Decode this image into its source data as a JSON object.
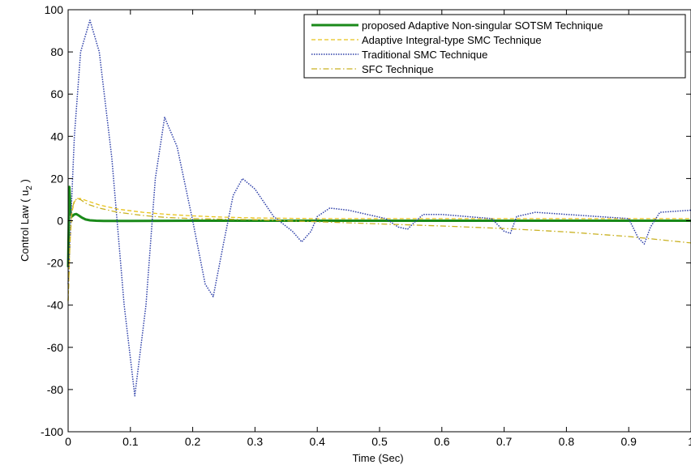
{
  "chart_data": {
    "type": "line",
    "xlabel": "Time (Sec)",
    "ylabel_main": "Control Law ( u",
    "ylabel_sub": "2",
    "ylabel_end": " )",
    "xlim": [
      0,
      1
    ],
    "ylim": [
      -100,
      100
    ],
    "xticks": [
      0,
      0.1,
      0.2,
      0.3,
      0.4,
      0.5,
      0.6,
      0.7,
      0.8,
      0.9,
      1
    ],
    "xtick_labels": [
      "0",
      "0.1",
      "0.2",
      "0.3",
      "0.4",
      "0.5",
      "0.6",
      "0.7",
      "0.8",
      "0.9",
      "1"
    ],
    "yticks": [
      -100,
      -80,
      -60,
      -40,
      -20,
      0,
      20,
      40,
      60,
      80,
      100
    ],
    "ytick_labels": [
      "-100",
      "-80",
      "-60",
      "-40",
      "-20",
      "0",
      "20",
      "40",
      "60",
      "80",
      "100"
    ],
    "grid": false,
    "legend_position": "top-right",
    "series": [
      {
        "name": "proposed Adaptive Non-singular SOTSM Technique",
        "color": "#1a8a1a",
        "style": "solid",
        "x": [
          0,
          0.002,
          0.004,
          0.006,
          0.008,
          0.01,
          0.013,
          0.017,
          0.022,
          0.028,
          0.035,
          0.045,
          0.06,
          0.1,
          0.2,
          0.4,
          0.6,
          0.8,
          1.0
        ],
        "y": [
          -22,
          16,
          4,
          2,
          2.5,
          3,
          3.2,
          2.5,
          1.5,
          0.6,
          0.2,
          0,
          -0.1,
          -0.1,
          0,
          0,
          0,
          0,
          0
        ]
      },
      {
        "name": "Adaptive Integral-type SMC Technique",
        "color": "#e8c21a",
        "style": "dashed",
        "x": [
          0,
          0.003,
          0.006,
          0.01,
          0.015,
          0.02,
          0.03,
          0.05,
          0.08,
          0.12,
          0.16,
          0.2,
          0.25,
          0.3,
          0.4,
          0.5,
          0.6,
          0.7,
          0.8,
          0.9,
          1.0
        ],
        "y": [
          -38,
          -10,
          4,
          9,
          10.5,
          10.5,
          9.5,
          7.5,
          5.5,
          4,
          3,
          2.3,
          1.7,
          1.3,
          1,
          1,
          1,
          1,
          1,
          1,
          1
        ]
      },
      {
        "name": "Traditional SMC Technique",
        "color": "#2d3fa8",
        "style": "dotted",
        "x": [
          0,
          0.01,
          0.02,
          0.035,
          0.05,
          0.07,
          0.09,
          0.107,
          0.125,
          0.14,
          0.155,
          0.175,
          0.2,
          0.22,
          0.233,
          0.25,
          0.265,
          0.28,
          0.3,
          0.33,
          0.36,
          0.375,
          0.39,
          0.4,
          0.42,
          0.45,
          0.48,
          0.51,
          0.53,
          0.545,
          0.555,
          0.57,
          0.6,
          0.64,
          0.68,
          0.7,
          0.71,
          0.72,
          0.75,
          0.8,
          0.85,
          0.9,
          0.915,
          0.925,
          0.935,
          0.95,
          1.0
        ],
        "y": [
          -30,
          40,
          80,
          95,
          80,
          30,
          -40,
          -83,
          -40,
          20,
          49,
          35,
          0,
          -30,
          -36,
          -10,
          12,
          20,
          15,
          2,
          -5,
          -10,
          -5,
          2,
          6,
          5,
          3,
          1,
          -3,
          -4,
          -1,
          3,
          3,
          2,
          1,
          -5,
          -6,
          2,
          4,
          3,
          2,
          1,
          -8,
          -11,
          -3,
          4,
          5
        ]
      },
      {
        "name": "SFC Technique",
        "color": "#c9b120",
        "style": "dashdot",
        "x": [
          0,
          0.003,
          0.006,
          0.01,
          0.015,
          0.02,
          0.03,
          0.05,
          0.08,
          0.12,
          0.16,
          0.2,
          0.3,
          0.4,
          0.5,
          0.6,
          0.7,
          0.8,
          0.9,
          1.0
        ],
        "y": [
          -38,
          -10,
          5,
          9.5,
          10.5,
          10,
          8,
          6,
          4,
          2.5,
          1.5,
          1,
          0.5,
          -0.5,
          -1.5,
          -2.5,
          -3.7,
          -5.3,
          -7.5,
          -10.5
        ]
      }
    ]
  }
}
